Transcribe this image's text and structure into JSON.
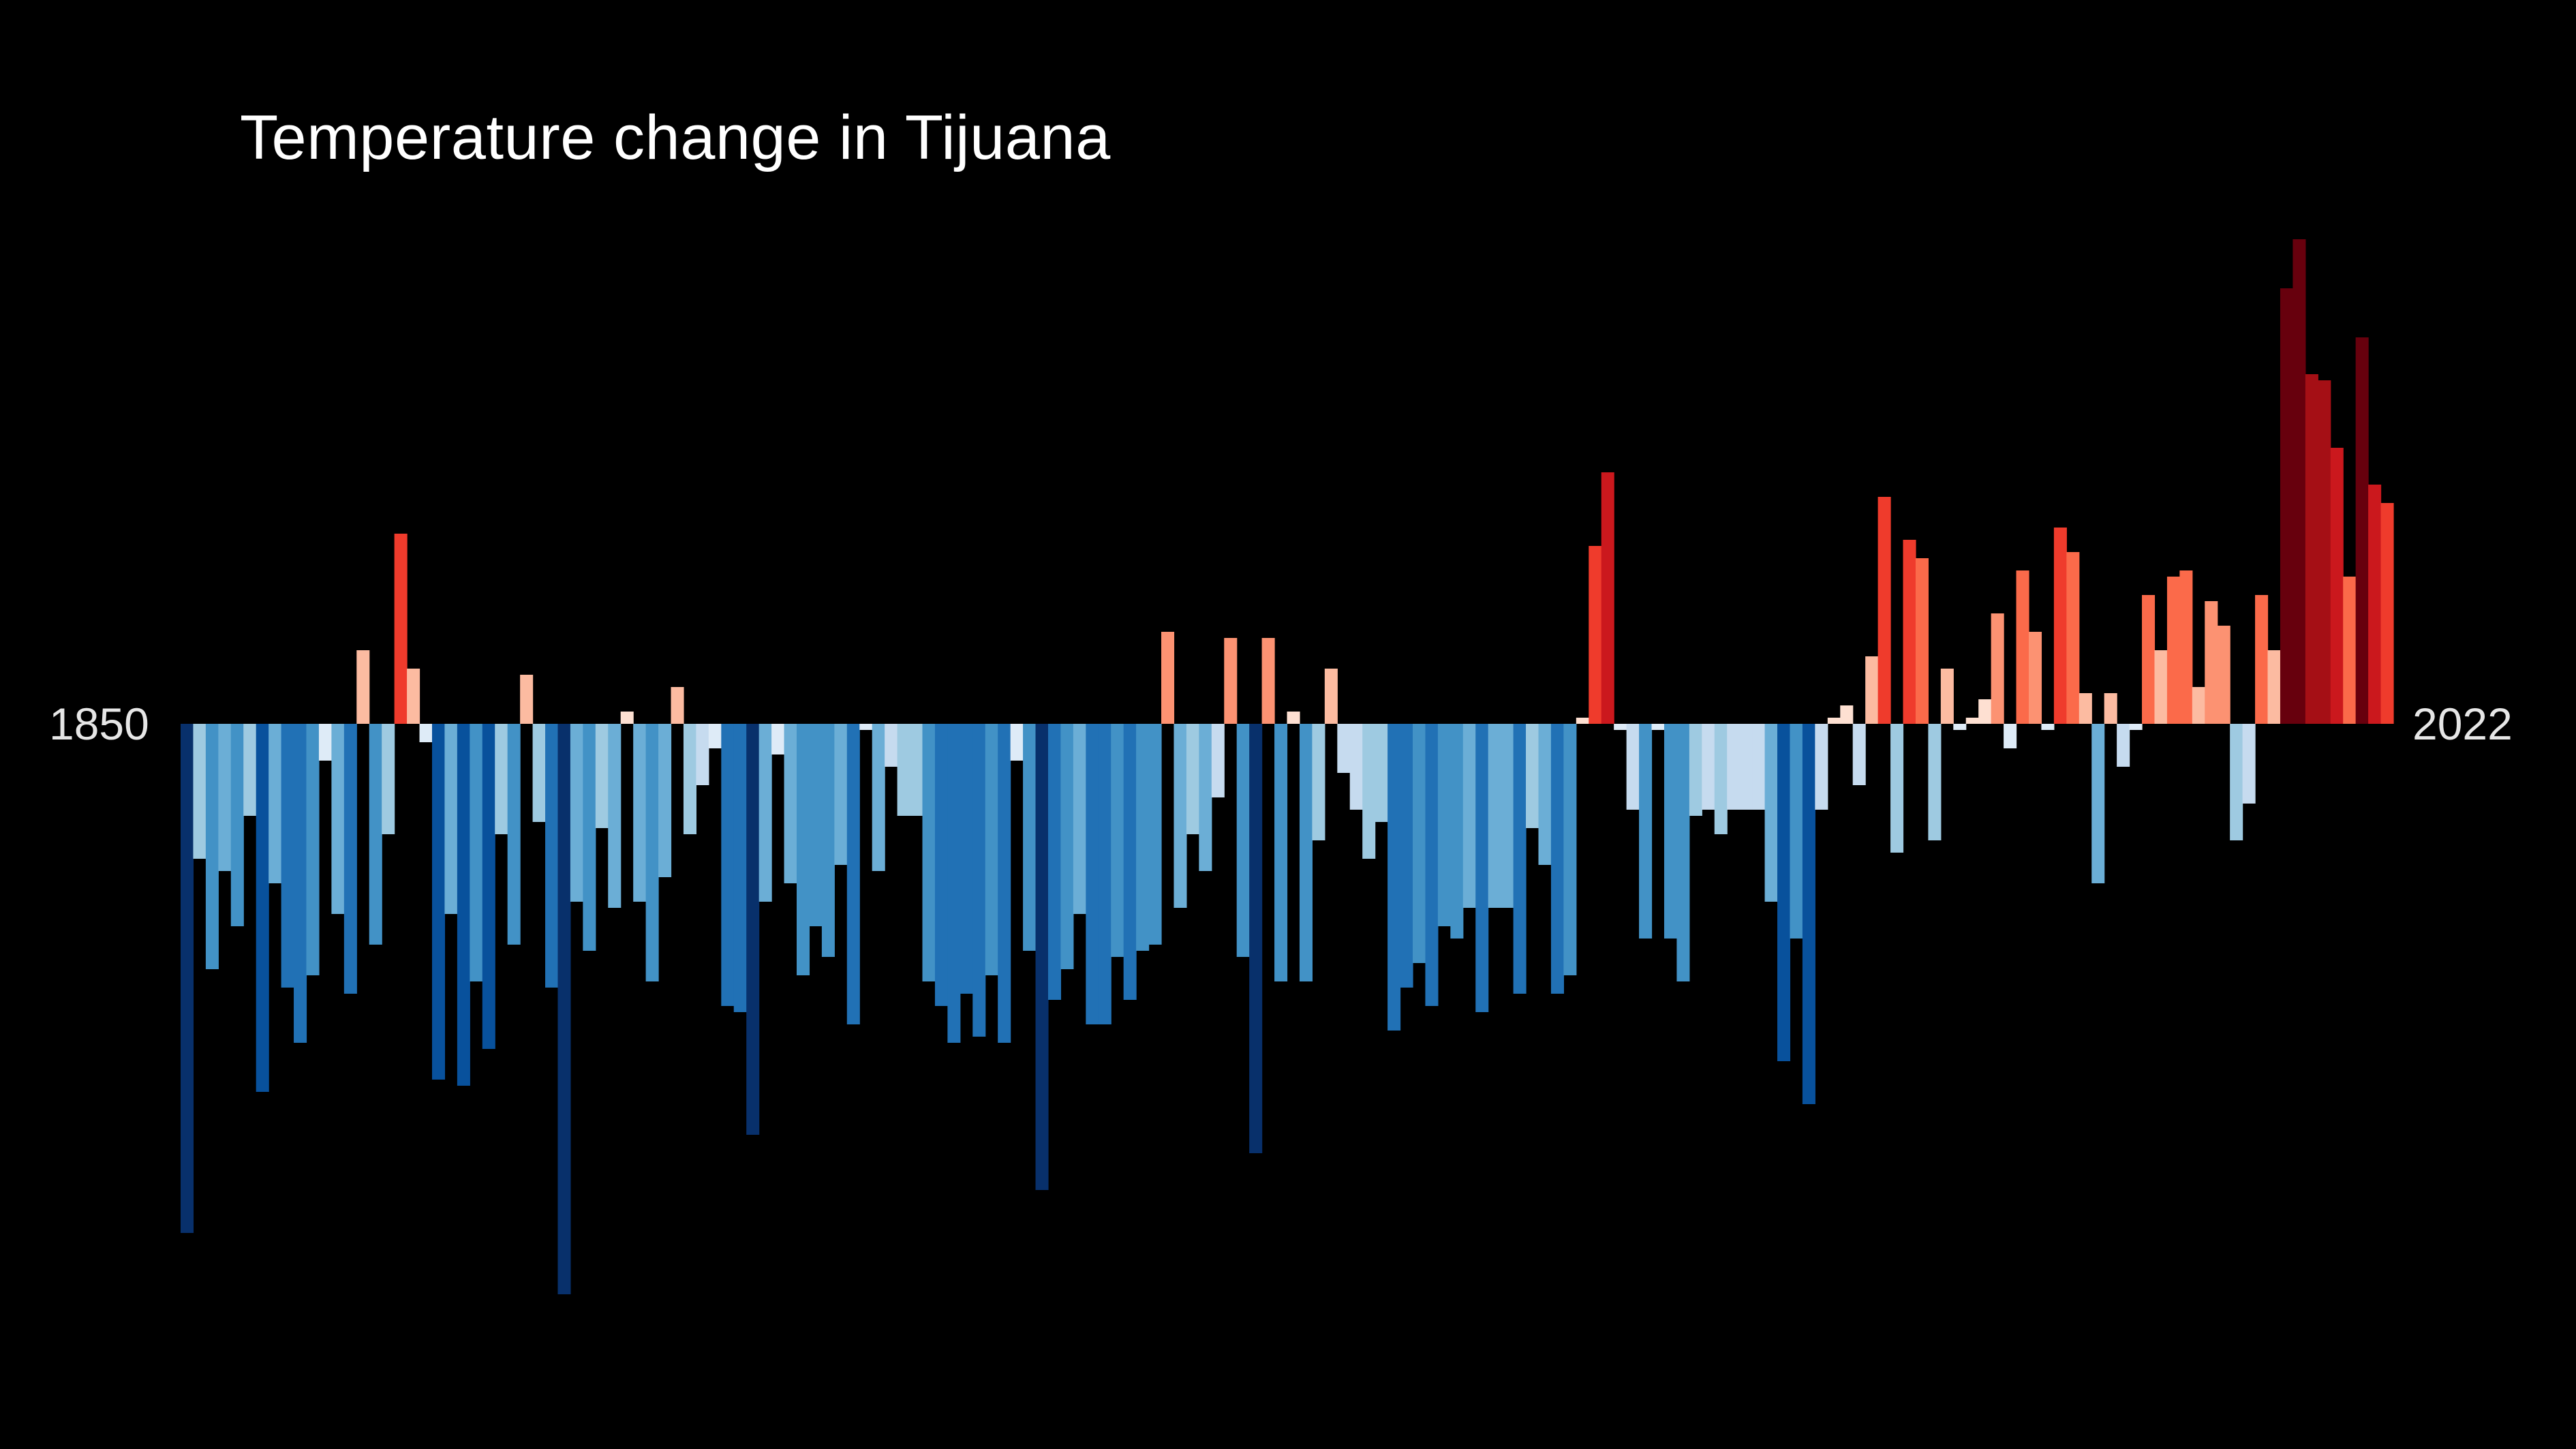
{
  "chart_data": {
    "type": "bar",
    "title": "Temperature change in Tijuana",
    "start_label": "1850",
    "end_label": "2022",
    "x_start": 1850,
    "x_end": 2022,
    "ylim": [
      -0.96,
      0.92
    ],
    "legend": "none",
    "grid": false,
    "color_scale": "blue-to-red diverging (cold to warm)",
    "values": [
      -0.83,
      -0.22,
      -0.4,
      -0.24,
      -0.33,
      -0.15,
      -0.6,
      -0.26,
      -0.43,
      -0.52,
      -0.41,
      -0.06,
      -0.31,
      -0.44,
      0.12,
      -0.36,
      -0.18,
      0.31,
      0.09,
      -0.03,
      -0.58,
      -0.31,
      -0.59,
      -0.42,
      -0.53,
      -0.18,
      -0.36,
      0.08,
      -0.16,
      -0.43,
      -0.93,
      -0.29,
      -0.37,
      -0.17,
      -0.3,
      0.02,
      -0.29,
      -0.42,
      -0.25,
      0.06,
      -0.18,
      -0.1,
      -0.04,
      -0.46,
      -0.47,
      -0.67,
      -0.29,
      -0.05,
      -0.26,
      -0.41,
      -0.33,
      -0.38,
      -0.23,
      -0.49,
      -0.01,
      -0.24,
      -0.07,
      -0.15,
      -0.15,
      -0.42,
      -0.46,
      -0.52,
      -0.44,
      -0.51,
      -0.41,
      -0.52,
      -0.06,
      -0.37,
      -0.76,
      -0.45,
      -0.4,
      -0.31,
      -0.49,
      -0.49,
      -0.38,
      -0.45,
      -0.37,
      -0.36,
      0.15,
      -0.3,
      -0.18,
      -0.24,
      -0.12,
      0.14,
      -0.38,
      -0.7,
      0.14,
      -0.42,
      0.02,
      -0.42,
      -0.19,
      0.09,
      -0.08,
      -0.14,
      -0.22,
      -0.16,
      -0.5,
      -0.43,
      -0.39,
      -0.46,
      -0.33,
      -0.35,
      -0.3,
      -0.47,
      -0.3,
      -0.3,
      -0.44,
      -0.17,
      -0.23,
      -0.44,
      -0.41,
      0.01,
      0.29,
      0.41,
      -0.01,
      -0.14,
      -0.35,
      -0.01,
      -0.35,
      -0.42,
      -0.15,
      -0.14,
      -0.18,
      -0.14,
      -0.14,
      -0.14,
      -0.29,
      -0.55,
      -0.35,
      -0.62,
      -0.14,
      0.01,
      0.03,
      -0.1,
      0.11,
      0.37,
      -0.21,
      0.3,
      0.27,
      -0.19,
      0.09,
      -0.01,
      0.01,
      0.04,
      0.18,
      -0.04,
      0.25,
      0.15,
      -0.01,
      0.32,
      0.28,
      0.05,
      -0.26,
      0.05,
      -0.07,
      -0.01,
      0.21,
      0.12,
      0.24,
      0.25,
      0.06,
      0.2,
      0.16,
      -0.19,
      -0.13,
      0.21,
      0.12,
      0.71,
      0.79,
      0.57,
      0.56,
      0.45,
      0.24,
      0.63,
      0.39,
      0.36
    ]
  }
}
